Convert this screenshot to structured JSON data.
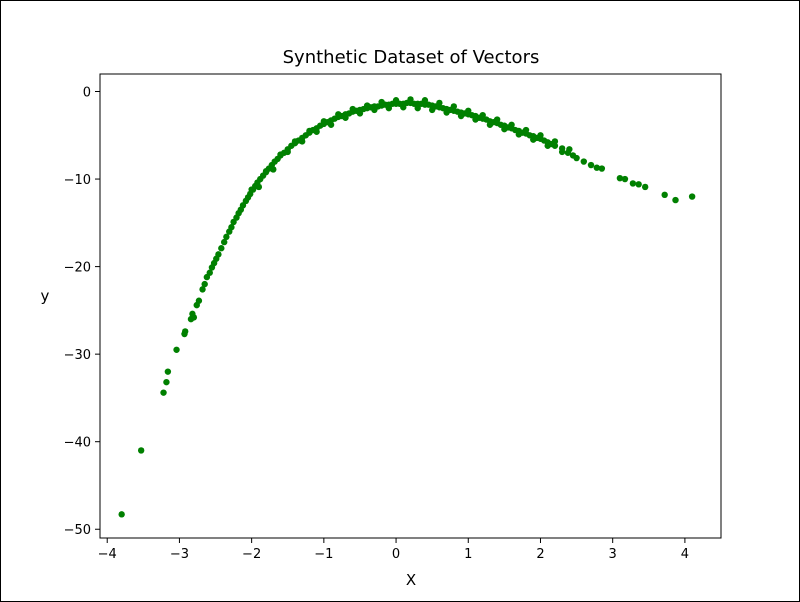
{
  "chart_data": {
    "type": "scatter",
    "title": "Synthetic Dataset of Vectors",
    "xlabel": "X",
    "ylabel": "y",
    "xlim": [
      -4.1,
      4.5
    ],
    "ylim": [
      -51.0,
      2.0
    ],
    "xticks": [
      -4,
      -3,
      -2,
      -1,
      0,
      1,
      2,
      3,
      4
    ],
    "yticks": [
      0,
      -10,
      -20,
      -30,
      -40,
      -50
    ],
    "grid": false,
    "legend": "none",
    "marker_color": "#008000",
    "series": [
      {
        "points": [
          [
            -3.8,
            -48.3
          ],
          [
            -3.53,
            -41.0
          ],
          [
            -3.22,
            -34.4
          ],
          [
            -3.18,
            -33.2
          ],
          [
            -3.16,
            -32.0
          ],
          [
            -3.04,
            -29.5
          ],
          [
            -2.93,
            -27.7
          ],
          [
            -2.92,
            -27.4
          ],
          [
            -2.84,
            -26.0
          ],
          [
            -2.82,
            -25.4
          ],
          [
            -2.8,
            -25.8
          ],
          [
            -2.76,
            -24.4
          ],
          [
            -2.73,
            -23.9
          ],
          [
            -2.68,
            -22.6
          ],
          [
            -2.65,
            -22.0
          ],
          [
            -2.62,
            -21.2
          ],
          [
            -2.58,
            -20.7
          ],
          [
            -2.55,
            -20.1
          ],
          [
            -2.52,
            -19.6
          ],
          [
            -2.49,
            -19.1
          ],
          [
            -2.46,
            -18.6
          ],
          [
            -2.42,
            -17.9
          ],
          [
            -2.38,
            -17.2
          ],
          [
            -2.35,
            -16.6
          ],
          [
            -2.31,
            -16.0
          ],
          [
            -2.28,
            -15.5
          ],
          [
            -2.25,
            -14.9
          ],
          [
            -2.21,
            -14.4
          ],
          [
            -2.18,
            -13.9
          ],
          [
            -2.15,
            -13.5
          ],
          [
            -2.12,
            -13.0
          ],
          [
            -2.08,
            -12.5
          ],
          [
            -2.05,
            -12.1
          ],
          [
            -2.02,
            -11.7
          ],
          [
            -1.98,
            -11.2
          ],
          [
            -1.95,
            -10.8
          ],
          [
            -1.92,
            -10.4
          ],
          [
            -1.88,
            -10.0
          ],
          [
            -1.84,
            -9.6
          ],
          [
            -1.8,
            -9.2
          ],
          [
            -1.76,
            -8.8
          ],
          [
            -1.72,
            -8.4
          ],
          [
            -1.68,
            -8.0
          ],
          [
            -1.64,
            -7.7
          ],
          [
            -1.6,
            -7.3
          ],
          [
            -1.55,
            -7.0
          ],
          [
            -1.5,
            -6.6
          ],
          [
            -1.45,
            -6.2
          ],
          [
            -1.4,
            -5.9
          ],
          [
            -1.35,
            -5.6
          ],
          [
            -1.3,
            -5.3
          ],
          [
            -1.25,
            -5.0
          ],
          [
            -1.2,
            -4.7
          ],
          [
            -1.15,
            -4.4
          ],
          [
            -1.1,
            -4.2
          ],
          [
            -1.05,
            -3.9
          ],
          [
            -1.0,
            -3.7
          ],
          [
            -0.95,
            -3.5
          ],
          [
            -0.9,
            -3.3
          ],
          [
            -0.85,
            -3.1
          ],
          [
            -0.8,
            -2.9
          ],
          [
            -0.75,
            -2.8
          ],
          [
            -0.7,
            -2.6
          ],
          [
            -0.65,
            -2.5
          ],
          [
            -0.6,
            -2.3
          ],
          [
            -0.55,
            -2.2
          ],
          [
            -0.5,
            -2.1
          ],
          [
            -0.45,
            -2.0
          ],
          [
            -0.4,
            -1.9
          ],
          [
            -0.35,
            -1.8
          ],
          [
            -0.3,
            -1.7
          ],
          [
            -0.25,
            -1.7
          ],
          [
            -0.2,
            -1.6
          ],
          [
            -0.15,
            -1.5
          ],
          [
            -0.1,
            -1.5
          ],
          [
            -0.05,
            -1.4
          ],
          [
            0.0,
            -1.4
          ],
          [
            0.05,
            -1.4
          ],
          [
            0.1,
            -1.4
          ],
          [
            0.15,
            -1.3
          ],
          [
            0.2,
            -1.3
          ],
          [
            0.25,
            -1.4
          ],
          [
            0.3,
            -1.4
          ],
          [
            0.35,
            -1.4
          ],
          [
            0.4,
            -1.5
          ],
          [
            0.45,
            -1.5
          ],
          [
            0.5,
            -1.6
          ],
          [
            0.55,
            -1.7
          ],
          [
            0.6,
            -1.8
          ],
          [
            0.65,
            -1.9
          ],
          [
            0.7,
            -2.0
          ],
          [
            0.75,
            -2.1
          ],
          [
            0.8,
            -2.2
          ],
          [
            0.85,
            -2.3
          ],
          [
            0.9,
            -2.4
          ],
          [
            0.95,
            -2.5
          ],
          [
            1.0,
            -2.6
          ],
          [
            1.05,
            -2.7
          ],
          [
            1.1,
            -2.8
          ],
          [
            1.15,
            -3.0
          ],
          [
            1.2,
            -3.1
          ],
          [
            1.25,
            -3.2
          ],
          [
            1.3,
            -3.4
          ],
          [
            1.35,
            -3.5
          ],
          [
            1.4,
            -3.6
          ],
          [
            1.45,
            -3.8
          ],
          [
            1.5,
            -3.9
          ],
          [
            1.55,
            -4.1
          ],
          [
            1.6,
            -4.2
          ],
          [
            1.65,
            -4.4
          ],
          [
            1.7,
            -4.5
          ],
          [
            1.75,
            -4.7
          ],
          [
            1.8,
            -4.8
          ],
          [
            1.85,
            -5.0
          ],
          [
            1.9,
            -5.1
          ],
          [
            1.95,
            -5.3
          ],
          [
            2.0,
            -5.4
          ],
          [
            2.05,
            -5.6
          ],
          [
            2.1,
            -5.8
          ],
          [
            2.15,
            -6.0
          ],
          [
            2.2,
            -6.2
          ],
          [
            2.3,
            -6.5
          ],
          [
            2.38,
            -7.0
          ],
          [
            2.45,
            -7.3
          ],
          [
            2.5,
            -7.6
          ],
          [
            2.6,
            -8.0
          ],
          [
            2.7,
            -8.4
          ],
          [
            2.78,
            -8.7
          ],
          [
            2.85,
            -8.8
          ],
          [
            3.1,
            -9.9
          ],
          [
            3.17,
            -10.0
          ],
          [
            3.28,
            -10.5
          ],
          [
            3.36,
            -10.6
          ],
          [
            3.45,
            -10.9
          ],
          [
            3.72,
            -11.8
          ],
          [
            3.87,
            -12.4
          ],
          [
            4.1,
            -12.0
          ],
          [
            -1.9,
            -10.9
          ],
          [
            -1.7,
            -8.9
          ],
          [
            -1.5,
            -6.9
          ],
          [
            -1.3,
            -5.7
          ],
          [
            -1.1,
            -4.6
          ],
          [
            -0.9,
            -3.8
          ],
          [
            -0.7,
            -3.0
          ],
          [
            -0.5,
            -2.5
          ],
          [
            -0.3,
            -2.1
          ],
          [
            -0.1,
            -1.9
          ],
          [
            0.1,
            -1.8
          ],
          [
            0.3,
            -1.9
          ],
          [
            0.5,
            -2.1
          ],
          [
            0.7,
            -2.4
          ],
          [
            0.9,
            -2.8
          ],
          [
            1.1,
            -3.2
          ],
          [
            1.3,
            -3.8
          ],
          [
            1.5,
            -4.3
          ],
          [
            1.7,
            -4.9
          ],
          [
            1.9,
            -5.5
          ],
          [
            2.1,
            -6.2
          ],
          [
            2.3,
            -6.9
          ],
          [
            -2.0,
            -11.2
          ],
          [
            -1.8,
            -9.1
          ],
          [
            -1.6,
            -7.2
          ],
          [
            -1.4,
            -5.7
          ],
          [
            -1.2,
            -4.5
          ],
          [
            -1.0,
            -3.4
          ],
          [
            -0.8,
            -2.6
          ],
          [
            -0.6,
            -2.0
          ],
          [
            -0.4,
            -1.6
          ],
          [
            -0.2,
            -1.2
          ],
          [
            0.0,
            -1.0
          ],
          [
            0.2,
            -0.9
          ],
          [
            0.4,
            -1.0
          ],
          [
            0.6,
            -1.3
          ],
          [
            0.8,
            -1.7
          ],
          [
            1.0,
            -2.2
          ],
          [
            1.2,
            -2.7
          ],
          [
            1.4,
            -3.2
          ],
          [
            1.6,
            -3.8
          ],
          [
            1.8,
            -4.4
          ],
          [
            2.0,
            -5.0
          ],
          [
            2.2,
            -5.7
          ],
          [
            2.4,
            -6.6
          ]
        ]
      }
    ]
  }
}
